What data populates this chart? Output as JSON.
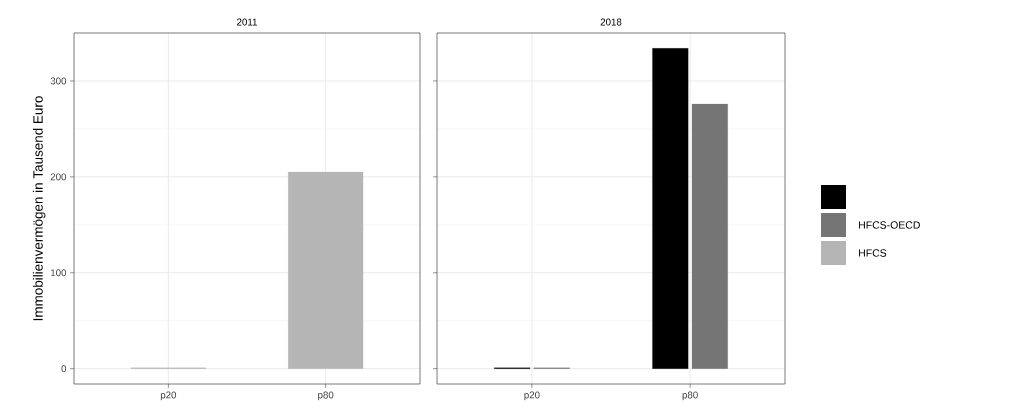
{
  "chart_data": [
    {
      "type": "bar",
      "title": "2011",
      "ylabel": "Immobilienvermögen in Tausend Euro",
      "categories": [
        "p20",
        "p80"
      ],
      "ylim": [
        -16,
        350
      ],
      "yticks": [
        0,
        100,
        200,
        300
      ],
      "grid": true,
      "legend": false,
      "series": [
        {
          "color": "#000000",
          "values": [
            null,
            null
          ]
        },
        {
          "color": "#757575",
          "values": [
            null,
            null
          ]
        },
        {
          "color": "#b5b5b5",
          "values": [
            1,
            205
          ]
        }
      ]
    },
    {
      "type": "bar",
      "title": "2018",
      "categories": [
        "p20",
        "p80"
      ],
      "ylim": [
        -16,
        350
      ],
      "yticks": [
        0,
        100,
        200,
        300
      ],
      "grid": true,
      "legend": "right",
      "tick_labels": "x",
      "series": [
        {
          "color": "#000000",
          "values": [
            1,
            334
          ]
        },
        {
          "name": "HFCS-OECD",
          "color": "#757575",
          "values": [
            1,
            276
          ]
        },
        {
          "name": "HFCS",
          "color": "#b5b5b5",
          "values": [
            null,
            null
          ]
        }
      ]
    }
  ]
}
